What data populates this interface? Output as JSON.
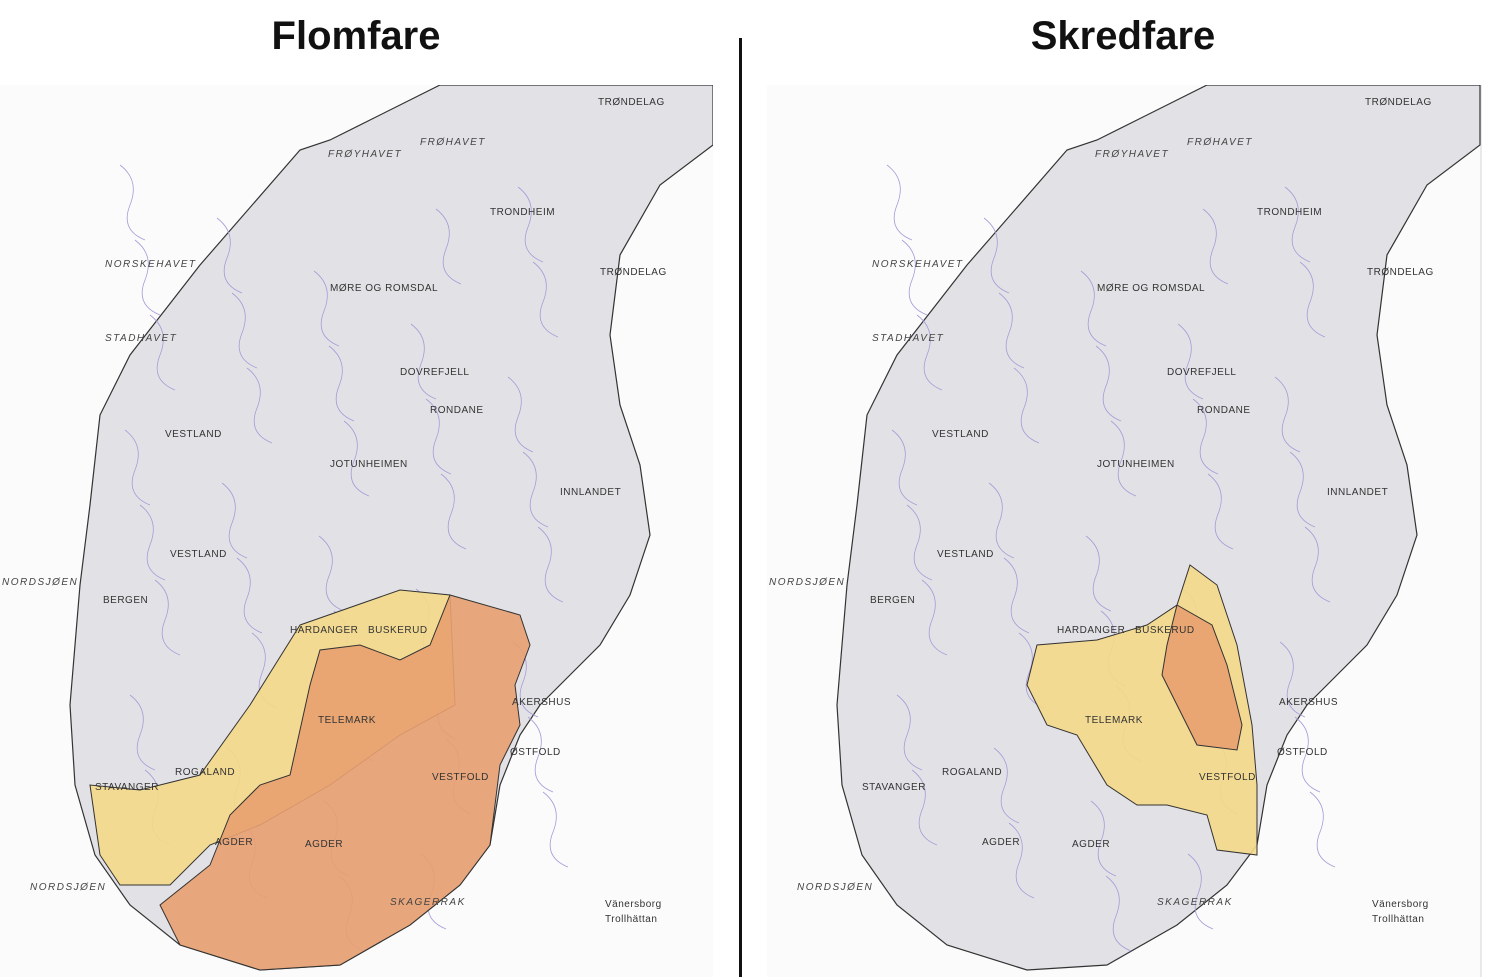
{
  "panels": [
    {
      "title": "Flomfare",
      "hazard_colors": {
        "moderate": "#f5d98a",
        "high": "#e8a070"
      }
    },
    {
      "title": "Skredfare",
      "hazard_colors": {
        "moderate": "#f5d98a",
        "high": "#e8a070"
      }
    }
  ],
  "map_labels": {
    "seas": [
      "NORSKEHAVET",
      "STADHAVET",
      "NORDSJØEN",
      "NORDSJØEN",
      "FRØYHAVET",
      "FRØHAVET",
      "SKAGERRAK"
    ],
    "regions": [
      "TRØNDELAG",
      "MØRE OG ROMSDAL",
      "VESTLAND",
      "VESTLAND",
      "INNLANDET",
      "BUSKERUD",
      "TELEMARK",
      "AGDER",
      "AGDER",
      "ROGALAND",
      "VESTFOLD",
      "ØSTFOLD",
      "AKERSHUS",
      "TRØNDELAG"
    ],
    "places": [
      "BERGEN",
      "STAVANGER",
      "HARDANGER",
      "JOTUNHEIMEN",
      "DOVREFJELL",
      "RONDANE",
      "TRONDHEIM",
      "Vänersborg",
      "Trollhättan"
    ]
  }
}
